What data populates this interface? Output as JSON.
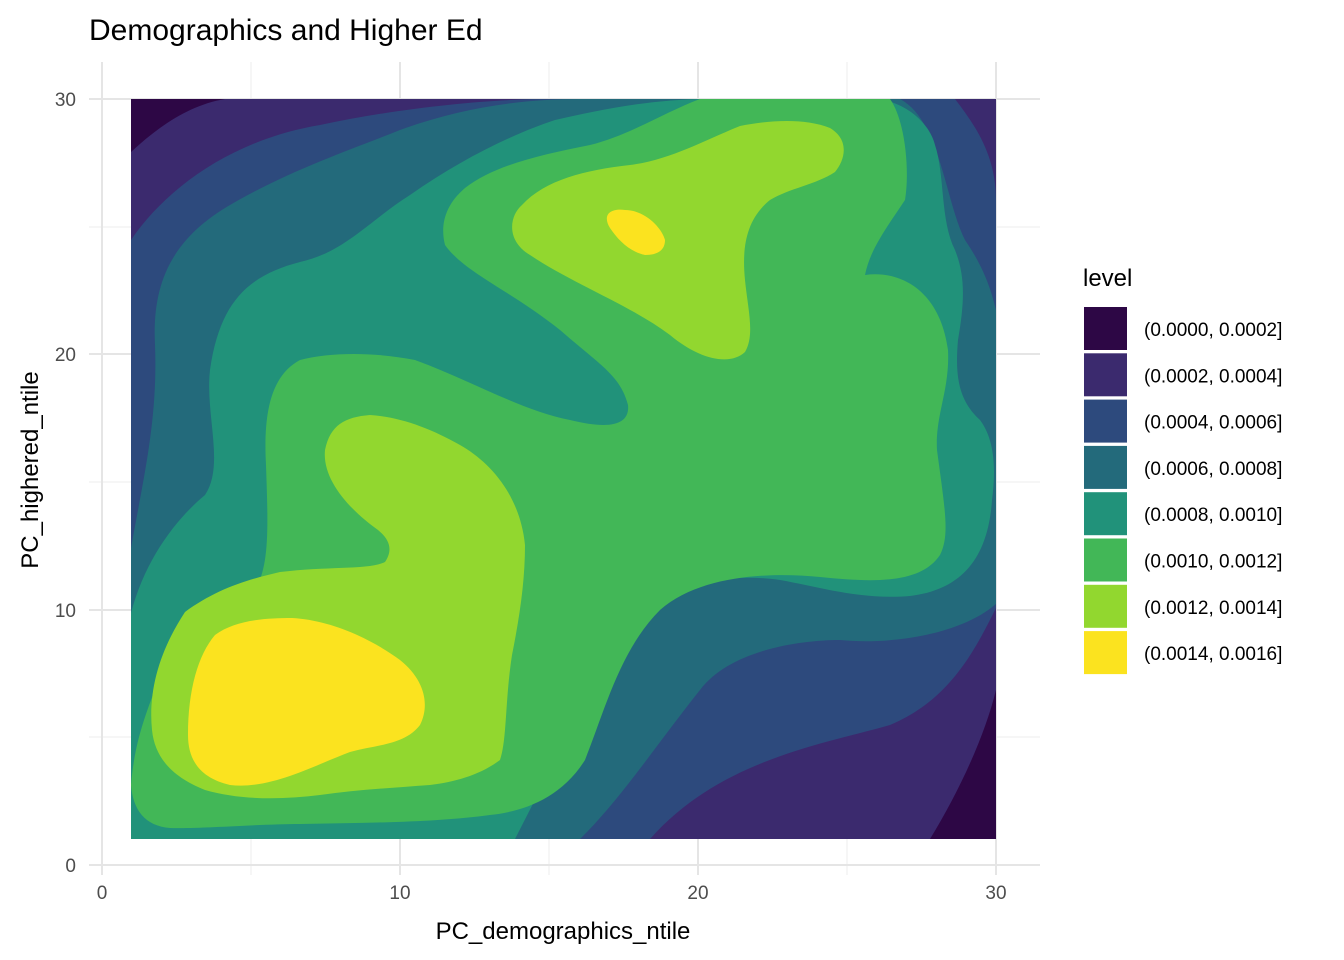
{
  "chart_data": {
    "type": "heatmap",
    "subtype": "filled-density-contour",
    "title": "Demographics and Higher Ed",
    "xlabel": "PC_demographics_ntile",
    "ylabel": "PC_highered_ntile",
    "xlim": [
      0,
      31
    ],
    "ylim": [
      0,
      31
    ],
    "xticks": [
      0,
      10,
      20,
      30
    ],
    "yticks": [
      0,
      10,
      20,
      30
    ],
    "data_extent": {
      "x": [
        1,
        30
      ],
      "y": [
        1,
        30
      ]
    },
    "grid": true,
    "legend": {
      "title": "level",
      "position": "right",
      "entries": [
        {
          "label": "(0.0000, 0.0002]",
          "color": "#2D0745"
        },
        {
          "label": "(0.0002, 0.0004]",
          "color": "#3B2A6E"
        },
        {
          "label": "(0.0004, 0.0006]",
          "color": "#2D4A7D"
        },
        {
          "label": "(0.0006, 0.0008]",
          "color": "#236A7B"
        },
        {
          "label": "(0.0008, 0.0010]",
          "color": "#21927A"
        },
        {
          "label": "(0.0010, 0.0012]",
          "color": "#42B757"
        },
        {
          "label": "(0.0012, 0.0014]",
          "color": "#92D72F"
        },
        {
          "label": "(0.0014, 0.0016]",
          "color": "#FBE31F"
        }
      ]
    },
    "peaks": [
      {
        "x": 7,
        "y": 6,
        "level": "(0.0014, 0.0016]"
      },
      {
        "x": 18,
        "y": 25,
        "level": "(0.0014, 0.0016]"
      }
    ]
  }
}
